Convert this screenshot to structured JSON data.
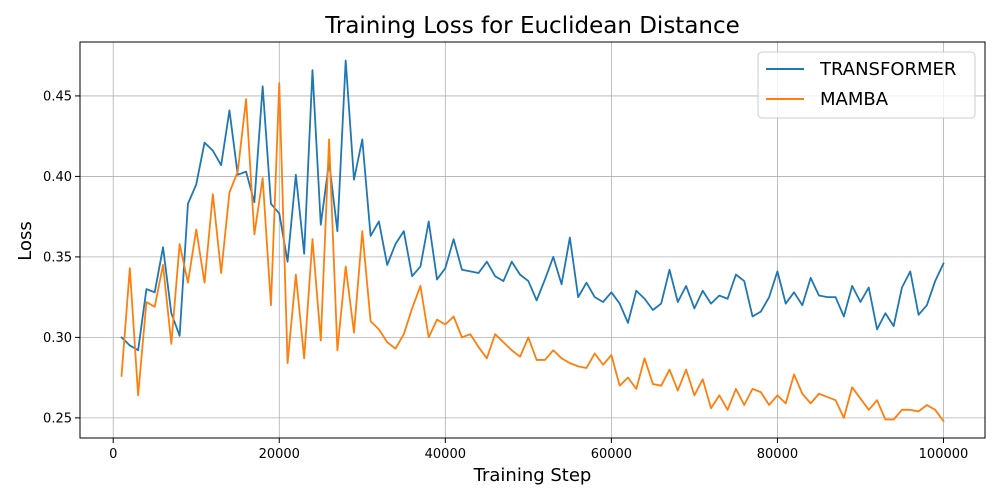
{
  "chart_data": {
    "type": "line",
    "title": "Training Loss for Euclidean Distance",
    "xlabel": "Training Step",
    "ylabel": "Loss",
    "xlim": [
      -4000,
      105000
    ],
    "ylim": [
      0.2375,
      0.4835
    ],
    "xticks": [
      0,
      20000,
      40000,
      60000,
      80000,
      100000
    ],
    "xtick_labels": [
      "0",
      "20000",
      "40000",
      "60000",
      "80000",
      "100000"
    ],
    "yticks": [
      0.25,
      0.3,
      0.35,
      0.4,
      0.45
    ],
    "ytick_labels": [
      "0.25",
      "0.30",
      "0.35",
      "0.40",
      "0.45"
    ],
    "grid": true,
    "legend_position": "upper right",
    "series": [
      {
        "name": "TRANSFORMER",
        "color": "#1f77b4",
        "x": [
          1000,
          2000,
          3000,
          4000,
          5000,
          6000,
          7000,
          8000,
          9000,
          10000,
          11000,
          12000,
          13000,
          14000,
          15000,
          16000,
          17000,
          18000,
          19000,
          20000,
          21000,
          22000,
          23000,
          24000,
          25000,
          26000,
          27000,
          28000,
          29000,
          30000,
          31000,
          32000,
          33000,
          34000,
          35000,
          36000,
          37000,
          38000,
          39000,
          40000,
          41000,
          42000,
          43000,
          44000,
          45000,
          46000,
          47000,
          48000,
          49000,
          50000,
          51000,
          52000,
          53000,
          54000,
          55000,
          56000,
          57000,
          58000,
          59000,
          60000,
          61000,
          62000,
          63000,
          64000,
          65000,
          66000,
          67000,
          68000,
          69000,
          70000,
          71000,
          72000,
          73000,
          74000,
          75000,
          76000,
          77000,
          78000,
          79000,
          80000,
          81000,
          82000,
          83000,
          84000,
          85000,
          86000,
          87000,
          88000,
          89000,
          90000,
          91000,
          92000,
          93000,
          94000,
          95000,
          96000,
          97000,
          98000,
          99000,
          100000
        ],
        "y": [
          0.3,
          0.295,
          0.292,
          0.33,
          0.328,
          0.356,
          0.315,
          0.301,
          0.383,
          0.395,
          0.421,
          0.416,
          0.407,
          0.441,
          0.401,
          0.403,
          0.384,
          0.456,
          0.383,
          0.377,
          0.347,
          0.401,
          0.352,
          0.466,
          0.37,
          0.409,
          0.366,
          0.472,
          0.398,
          0.423,
          0.363,
          0.372,
          0.345,
          0.358,
          0.366,
          0.338,
          0.344,
          0.372,
          0.336,
          0.343,
          0.361,
          0.342,
          0.341,
          0.34,
          0.347,
          0.338,
          0.335,
          0.347,
          0.339,
          0.335,
          0.323,
          0.336,
          0.35,
          0.333,
          0.362,
          0.325,
          0.334,
          0.325,
          0.322,
          0.328,
          0.321,
          0.309,
          0.329,
          0.324,
          0.317,
          0.321,
          0.342,
          0.322,
          0.332,
          0.318,
          0.329,
          0.321,
          0.326,
          0.324,
          0.339,
          0.335,
          0.313,
          0.316,
          0.325,
          0.341,
          0.321,
          0.328,
          0.32,
          0.337,
          0.326,
          0.325,
          0.325,
          0.313,
          0.332,
          0.322,
          0.331,
          0.305,
          0.315,
          0.307,
          0.331,
          0.341,
          0.314,
          0.32,
          0.335,
          0.346
        ]
      },
      {
        "name": "MAMBA",
        "color": "#ff7f0e",
        "x": [
          1000,
          2000,
          3000,
          4000,
          5000,
          6000,
          7000,
          8000,
          9000,
          10000,
          11000,
          12000,
          13000,
          14000,
          15000,
          16000,
          17000,
          18000,
          19000,
          20000,
          21000,
          22000,
          23000,
          24000,
          25000,
          26000,
          27000,
          28000,
          29000,
          30000,
          31000,
          32000,
          33000,
          34000,
          35000,
          36000,
          37000,
          38000,
          39000,
          40000,
          41000,
          42000,
          43000,
          44000,
          45000,
          46000,
          47000,
          48000,
          49000,
          50000,
          51000,
          52000,
          53000,
          54000,
          55000,
          56000,
          57000,
          58000,
          59000,
          60000,
          61000,
          62000,
          63000,
          64000,
          65000,
          66000,
          67000,
          68000,
          69000,
          70000,
          71000,
          72000,
          73000,
          74000,
          75000,
          76000,
          77000,
          78000,
          79000,
          80000,
          81000,
          82000,
          83000,
          84000,
          85000,
          86000,
          87000,
          88000,
          89000,
          90000,
          91000,
          92000,
          93000,
          94000,
          95000,
          96000,
          97000,
          98000,
          99000,
          100000
        ],
        "y": [
          0.276,
          0.343,
          0.264,
          0.322,
          0.319,
          0.345,
          0.296,
          0.358,
          0.334,
          0.367,
          0.334,
          0.389,
          0.34,
          0.39,
          0.403,
          0.448,
          0.364,
          0.399,
          0.32,
          0.458,
          0.284,
          0.339,
          0.287,
          0.361,
          0.298,
          0.423,
          0.292,
          0.344,
          0.303,
          0.366,
          0.31,
          0.305,
          0.297,
          0.293,
          0.302,
          0.318,
          0.332,
          0.3,
          0.311,
          0.308,
          0.313,
          0.3,
          0.302,
          0.294,
          0.287,
          0.302,
          0.297,
          0.292,
          0.288,
          0.3,
          0.286,
          0.286,
          0.292,
          0.287,
          0.284,
          0.282,
          0.281,
          0.29,
          0.283,
          0.289,
          0.27,
          0.275,
          0.268,
          0.287,
          0.271,
          0.27,
          0.28,
          0.267,
          0.28,
          0.264,
          0.274,
          0.256,
          0.264,
          0.255,
          0.268,
          0.258,
          0.268,
          0.266,
          0.258,
          0.264,
          0.259,
          0.277,
          0.265,
          0.259,
          0.265,
          0.263,
          0.261,
          0.25,
          0.269,
          0.262,
          0.255,
          0.261,
          0.249,
          0.249,
          0.255,
          0.255,
          0.254,
          0.258,
          0.255,
          0.248
        ]
      }
    ]
  }
}
